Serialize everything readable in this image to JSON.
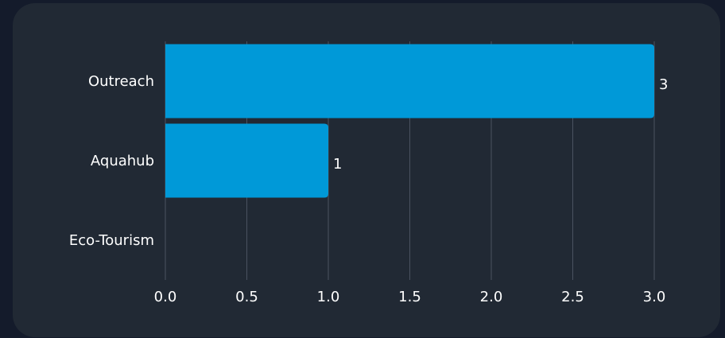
{
  "chart_data": {
    "type": "bar",
    "orientation": "horizontal",
    "categories": [
      "Outreach",
      "Aquahub",
      "Eco-Tourism"
    ],
    "values": [
      3,
      1,
      0
    ],
    "data_labels": [
      "3",
      "1",
      ""
    ],
    "xlim": [
      0,
      3.0
    ],
    "x_ticks": [
      "0.0",
      "0.5",
      "1.0",
      "1.5",
      "2.0",
      "2.5",
      "3.0"
    ],
    "title": "",
    "xlabel": "",
    "ylabel": "",
    "grid": "vertical",
    "legend": "none"
  },
  "colors": {
    "background": "#141b2b",
    "panel": "#212934",
    "bar": "#0099d8",
    "grid": "#4a5260",
    "text": "#ffffff"
  }
}
